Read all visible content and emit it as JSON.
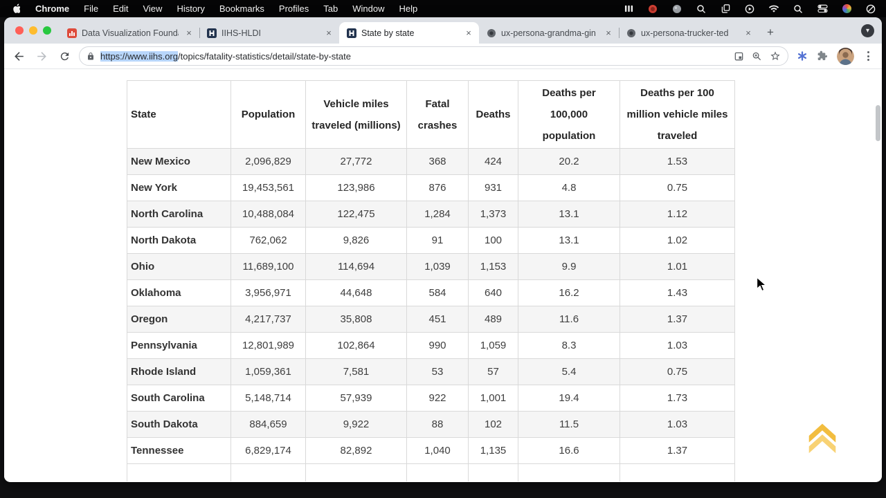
{
  "menubar": {
    "items": [
      "Chrome",
      "File",
      "Edit",
      "View",
      "History",
      "Bookmarks",
      "Profiles",
      "Tab",
      "Window",
      "Help"
    ]
  },
  "tabs": {
    "items": [
      {
        "title": "Data Visualization Founda"
      },
      {
        "title": "IIHS-HLDI"
      },
      {
        "title": "State by state"
      },
      {
        "title": "ux-persona-grandma-gin"
      },
      {
        "title": "ux-persona-trucker-ted"
      }
    ],
    "close_glyph": "×",
    "new_tab_glyph": "+",
    "tab_search_glyph": "▾"
  },
  "address": {
    "url_selected": "https://www.iihs.org",
    "url_rest": "/topics/fatality-statistics/detail/state-by-state"
  },
  "table": {
    "headers": [
      "State",
      "Population",
      "Vehicle miles traveled (millions)",
      "Fatal crashes",
      "Deaths",
      "Deaths per 100,000 population",
      "Deaths per 100 million vehicle miles traveled"
    ],
    "rows": [
      [
        "New Mexico",
        "2,096,829",
        "27,772",
        "368",
        "424",
        "20.2",
        "1.53"
      ],
      [
        "New York",
        "19,453,561",
        "123,986",
        "876",
        "931",
        "4.8",
        "0.75"
      ],
      [
        "North Carolina",
        "10,488,084",
        "122,475",
        "1,284",
        "1,373",
        "13.1",
        "1.12"
      ],
      [
        "North Dakota",
        "762,062",
        "9,826",
        "91",
        "100",
        "13.1",
        "1.02"
      ],
      [
        "Ohio",
        "11,689,100",
        "114,694",
        "1,039",
        "1,153",
        "9.9",
        "1.01"
      ],
      [
        "Oklahoma",
        "3,956,971",
        "44,648",
        "584",
        "640",
        "16.2",
        "1.43"
      ],
      [
        "Oregon",
        "4,217,737",
        "35,808",
        "451",
        "489",
        "11.6",
        "1.37"
      ],
      [
        "Pennsylvania",
        "12,801,989",
        "102,864",
        "990",
        "1,059",
        "8.3",
        "1.03"
      ],
      [
        "Rhode Island",
        "1,059,361",
        "7,581",
        "53",
        "57",
        "5.4",
        "0.75"
      ],
      [
        "South Carolina",
        "5,148,714",
        "57,939",
        "922",
        "1,001",
        "19.4",
        "1.73"
      ],
      [
        "South Dakota",
        "884,659",
        "9,922",
        "88",
        "102",
        "11.5",
        "1.03"
      ],
      [
        "Tennessee",
        "6,829,174",
        "82,892",
        "1,040",
        "1,135",
        "16.6",
        "1.37"
      ]
    ],
    "partial_row": [
      "",
      "",
      "",
      "",
      "",
      "",
      ""
    ]
  },
  "colors": {
    "stripe": "#f5f5f5",
    "selection": "#b8d6fb",
    "back_to_top": "#f2bd3f",
    "back_to_top_light": "#f8d274",
    "tab_strip": "#dee1e6"
  }
}
